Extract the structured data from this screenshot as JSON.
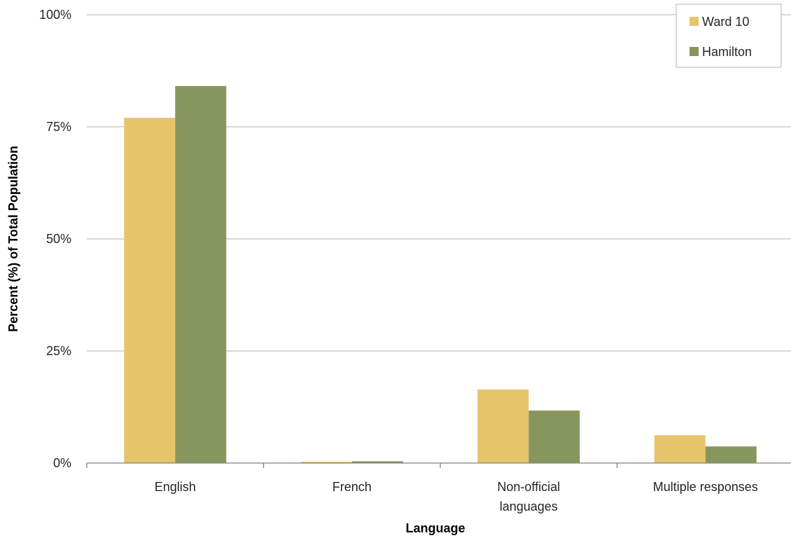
{
  "chart_data": {
    "type": "bar",
    "title": "",
    "xlabel": "Language",
    "ylabel": "Percent (%) of Total Population",
    "categories": [
      [
        "English"
      ],
      [
        "French"
      ],
      [
        "Non-official",
        "languages"
      ],
      [
        "Multiple responses"
      ]
    ],
    "series": [
      {
        "name": "Ward 10",
        "color": "#e6c46a",
        "values": [
          77.0,
          0.3,
          16.4,
          6.2
        ]
      },
      {
        "name": "Hamilton",
        "color": "#87965c",
        "values": [
          84.1,
          0.4,
          11.7,
          3.7
        ]
      }
    ],
    "ylim": [
      0,
      100
    ],
    "yticks": [
      0,
      25,
      50,
      75,
      100
    ],
    "ytick_labels": [
      "0%",
      "25%",
      "50%",
      "75%",
      "100%"
    ],
    "grid": true,
    "legend_position": "top-right"
  }
}
